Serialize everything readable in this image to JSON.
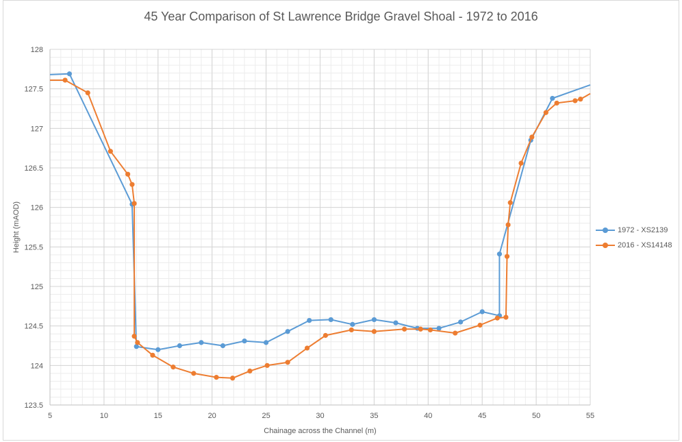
{
  "chart_data": {
    "type": "line",
    "title": "45 Year Comparison of St Lawrence Bridge Gravel Shoal - 1972 to 2016",
    "xlabel": "Chainage across the Channel (m)",
    "ylabel": "Height (mAOD)",
    "xlim": [
      5,
      55
    ],
    "ylim": [
      123.5,
      128
    ],
    "x_ticks": [
      "5",
      "10",
      "15",
      "20",
      "25",
      "30",
      "35",
      "40",
      "45",
      "50",
      "55"
    ],
    "y_ticks": [
      "123.5",
      "124",
      "124.5",
      "125",
      "125.5",
      "126",
      "126.5",
      "127",
      "127.5",
      "128"
    ],
    "grid": true,
    "legend_position": "right",
    "series": [
      {
        "name": "1972 - XS2139",
        "color": "#5b9bd5",
        "points": [
          [
            5.0,
            127.68
          ],
          [
            6.8,
            127.69
          ],
          [
            12.6,
            126.04
          ],
          [
            13.0,
            124.24
          ],
          [
            15.0,
            124.2
          ],
          [
            17.0,
            124.25
          ],
          [
            19.0,
            124.29
          ],
          [
            21.0,
            124.25
          ],
          [
            23.0,
            124.31
          ],
          [
            25.0,
            124.29
          ],
          [
            27.0,
            124.43
          ],
          [
            29.0,
            124.57
          ],
          [
            31.0,
            124.58
          ],
          [
            33.0,
            124.52
          ],
          [
            35.0,
            124.58
          ],
          [
            37.0,
            124.54
          ],
          [
            39.0,
            124.47
          ],
          [
            41.0,
            124.47
          ],
          [
            43.0,
            124.55
          ],
          [
            45.0,
            124.68
          ],
          [
            46.6,
            124.63
          ],
          [
            46.6,
            125.41
          ],
          [
            49.5,
            126.85
          ],
          [
            51.5,
            127.38
          ],
          [
            55.0,
            127.55
          ]
        ],
        "markers_from_index": 1,
        "markers_to_index": 23
      },
      {
        "name": "2016 - XS14148",
        "color": "#ed7d31",
        "points": [
          [
            5.0,
            127.61
          ],
          [
            6.4,
            127.61
          ],
          [
            8.5,
            127.45
          ],
          [
            10.6,
            126.71
          ],
          [
            12.2,
            126.42
          ],
          [
            12.6,
            126.29
          ],
          [
            12.8,
            126.05
          ],
          [
            12.8,
            124.37
          ],
          [
            13.1,
            124.29
          ],
          [
            14.5,
            124.13
          ],
          [
            16.4,
            123.98
          ],
          [
            18.3,
            123.9
          ],
          [
            20.4,
            123.85
          ],
          [
            21.9,
            123.84
          ],
          [
            23.5,
            123.93
          ],
          [
            25.1,
            124.0
          ],
          [
            27.0,
            124.04
          ],
          [
            28.8,
            124.22
          ],
          [
            30.5,
            124.38
          ],
          [
            32.9,
            124.45
          ],
          [
            35.0,
            124.43
          ],
          [
            37.8,
            124.46
          ],
          [
            39.3,
            124.46
          ],
          [
            40.2,
            124.45
          ],
          [
            42.5,
            124.41
          ],
          [
            44.8,
            124.51
          ],
          [
            46.4,
            124.6
          ],
          [
            47.2,
            124.61
          ],
          [
            47.3,
            125.38
          ],
          [
            47.4,
            125.78
          ],
          [
            47.6,
            126.06
          ],
          [
            48.6,
            126.56
          ],
          [
            49.6,
            126.89
          ],
          [
            50.9,
            127.2
          ],
          [
            51.9,
            127.32
          ],
          [
            53.6,
            127.35
          ],
          [
            54.1,
            127.37
          ],
          [
            55.0,
            127.44
          ]
        ],
        "markers_from_index": 1,
        "markers_to_index": 36
      }
    ]
  }
}
